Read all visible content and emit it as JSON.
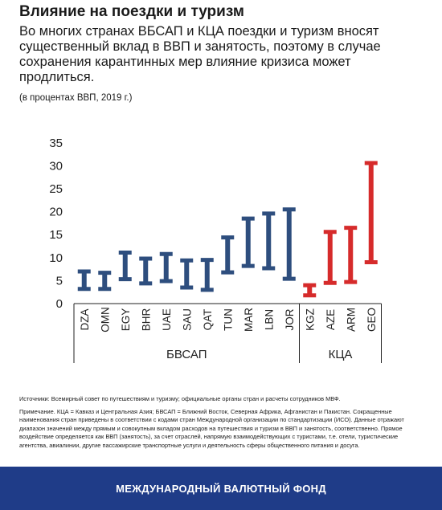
{
  "title": "Влияние на поездки и туризм",
  "subtitle": "Во многих странах ВБСАП и КЦА поездки и туризм вносят существенный вклад в ВВП и занятость, поэтому в случае сохранения карантинных мер влияние кризиса может продлиться.",
  "units": "(в процентах ВВП, 2019 г.)",
  "colors": {
    "mena": "#2e4e7e",
    "cca": "#d62b2b",
    "footer": "#1f3c88"
  },
  "chart_data": {
    "type": "range-bar",
    "ylim": [
      0,
      35
    ],
    "yticks": [
      0,
      5,
      10,
      15,
      20,
      25,
      30,
      35
    ],
    "categories": [
      "DZA",
      "OMN",
      "EGY",
      "BHR",
      "UAE",
      "SAU",
      "QAT",
      "TUN",
      "MAR",
      "LBN",
      "JOR",
      "KGZ",
      "AZE",
      "ARM",
      "GEO"
    ],
    "low": [
      3.2,
      3.2,
      5.3,
      4.4,
      4.9,
      3.5,
      3.0,
      6.8,
      8.2,
      7.7,
      5.4,
      1.8,
      4.5,
      4.7,
      9.0
    ],
    "high": [
      7.0,
      6.7,
      11.1,
      9.8,
      10.8,
      9.4,
      9.5,
      14.4,
      18.5,
      19.6,
      20.5,
      4.0,
      15.6,
      16.5,
      30.6
    ],
    "groups": [
      {
        "label": "БВСАП",
        "members": 11,
        "color": "#2e4e7e"
      },
      {
        "label": "КЦА",
        "members": 4,
        "color": "#d62b2b"
      }
    ]
  },
  "source": "Источники: Всемирный совет по путешествиям и туризму; официальные органы стран и расчеты сотрудников МВФ.",
  "note": "Примечание. КЦА = Кавказ и Центральная Азия; БВСАП = Ближний Восток, Северная Африка, Афганистан и Пакистан. Сокращенные наименования стран приведены в соответствии с кодами стран Международной организации по стандартизации (ИСО). Данные отражают диапазон значений между прямым и совокупным вкладом расходов на путешествия и туризм в ВВП и занятость, соответственно. Прямое воздействие определяется как ВВП (занятость), за счет отраслей, напрямую взаимодействующих с туристами, т.е. отели, туристические агентства, авиалинии, другие пассажирские транспортные услуги и деятельность сферы общественного питания и досуга.",
  "footer": "МЕЖДУНАРОДНЫЙ ВАЛЮТНЫЙ ФОНД"
}
